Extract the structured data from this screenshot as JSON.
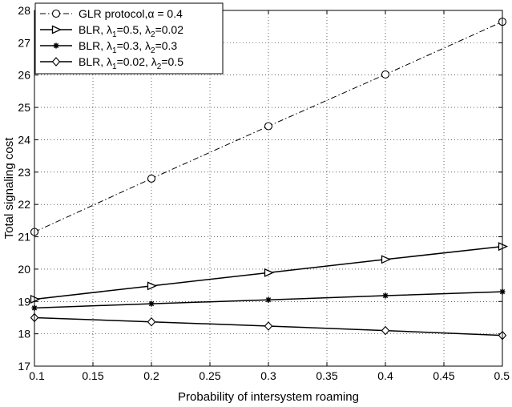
{
  "chart_data": {
    "type": "line",
    "xlabel": "Probability of intersystem roaming",
    "ylabel": "Total signaling cost",
    "xlim": [
      0.1,
      0.5
    ],
    "ylim": [
      17,
      28
    ],
    "x_ticks": [
      "0.1",
      "0.15",
      "0.2",
      "0.25",
      "0.3",
      "0.35",
      "0.4",
      "0.45",
      "0.5"
    ],
    "y_ticks": [
      "17",
      "18",
      "19",
      "20",
      "21",
      "22",
      "23",
      "24",
      "25",
      "26",
      "27",
      "28"
    ],
    "grid": true,
    "legend_position": "top-left",
    "x": [
      0.1,
      0.2,
      0.3,
      0.4,
      0.5
    ],
    "series": [
      {
        "name": "GLR protocol,α = 0.4",
        "values": [
          21.15,
          22.8,
          24.42,
          26.02,
          27.65
        ],
        "marker": "circle",
        "line_style": "dash-dot",
        "legend": {
          "main": "GLR protocol,α = 0.4"
        }
      },
      {
        "name": "BLR, λ1=0.5, λ2=0.02",
        "values": [
          19.07,
          19.48,
          19.89,
          20.3,
          20.7
        ],
        "marker": "triangle-right",
        "line_style": "solid",
        "legend": {
          "p1": "BLR, λ",
          "s1": "1",
          "p2": "=0.5, λ",
          "s2": "2",
          "p3": "=0.02"
        }
      },
      {
        "name": "BLR, λ1=0.3, λ2=0.3",
        "values": [
          18.8,
          18.93,
          19.05,
          19.18,
          19.3
        ],
        "marker": "star",
        "line_style": "solid",
        "legend": {
          "p1": "BLR, λ",
          "s1": "1",
          "p2": "=0.3, λ",
          "s2": "2",
          "p3": "=0.3"
        }
      },
      {
        "name": "BLR, λ1=0.02, λ2=0.5",
        "values": [
          18.5,
          18.37,
          18.24,
          18.1,
          17.95
        ],
        "marker": "diamond",
        "line_style": "solid",
        "legend": {
          "p1": "BLR, λ",
          "s1": "1",
          "p2": "=0.02, λ",
          "s2": "2",
          "p3": "=0.5"
        }
      }
    ]
  }
}
